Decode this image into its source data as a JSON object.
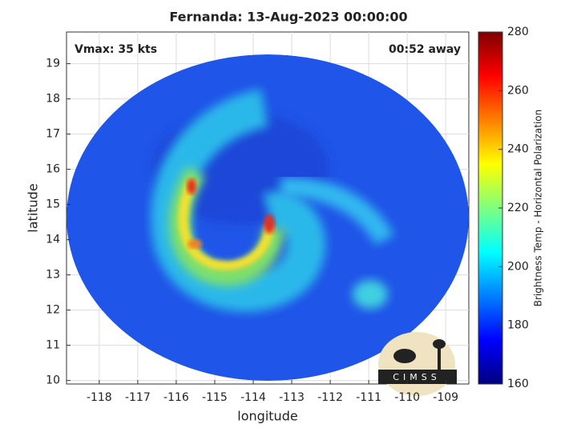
{
  "chart_data": {
    "type": "image",
    "title": "Fernanda: 13-Aug-2023 00:00:00",
    "xlabel": "longitude",
    "ylabel": "latitude",
    "xlim": [
      -118.85,
      -108.4
    ],
    "xticks": [
      -118,
      -117,
      -116,
      -115,
      -114,
      -113,
      -112,
      -111,
      -110,
      -109
    ],
    "ylim": [
      9.9,
      19.9
    ],
    "yticks": [
      10,
      11,
      12,
      13,
      14,
      15,
      16,
      17,
      18,
      19
    ],
    "grid": true,
    "annotations": [
      "Vmax: 35 kts",
      "00:52 away"
    ],
    "logo": "CIMSS",
    "colorbar": {
      "label": "Brightness Temp - Horizontal Polarization",
      "colormap": "jet",
      "lim": [
        160,
        280
      ],
      "ticks": [
        160,
        180,
        200,
        220,
        240,
        260,
        280
      ]
    }
  }
}
